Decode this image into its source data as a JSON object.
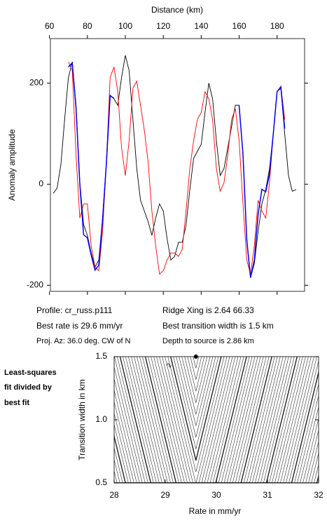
{
  "chart_data": [
    {
      "type": "line",
      "title": "Distance (km)",
      "y_label": "Anomaly amplitude",
      "xlim": [
        60.5,
        194.5
      ],
      "ylim": [
        -212,
        288
      ],
      "xticks": [
        60,
        80,
        100,
        120,
        140,
        160,
        180
      ],
      "yticks": [
        -200,
        0,
        200
      ],
      "x": [
        62,
        64,
        66,
        68,
        70,
        72,
        74,
        76,
        78,
        80,
        82,
        84,
        86,
        88,
        90,
        92,
        94,
        96,
        98,
        100,
        102,
        104,
        106,
        108,
        110,
        112,
        114,
        116,
        118,
        120,
        122,
        124,
        126,
        128,
        130,
        132,
        134,
        136,
        138,
        140,
        142,
        144,
        146,
        148,
        150,
        152,
        154,
        156,
        158,
        160,
        162,
        164,
        166,
        168,
        170,
        172,
        174,
        176,
        178,
        180,
        182,
        184,
        186,
        188,
        190
      ],
      "series": [
        {
          "color": "#000000",
          "values": [
            -18,
            -8,
            38,
            128,
            211,
            242,
            156,
            3,
            -80,
            -101,
            -136,
            -164,
            -150,
            -67,
            44,
            176,
            169,
            156,
            211,
            255,
            225,
            128,
            31,
            -32,
            -53,
            -74,
            -101,
            -67,
            -39,
            -53,
            -108,
            -150,
            -143,
            -115,
            -115,
            -81,
            -11,
            51,
            65,
            79,
            142,
            200,
            169,
            86,
            17,
            31,
            72,
            114,
            156,
            156,
            58,
            -108,
            -185,
            -157,
            -94,
            -39,
            -11,
            31,
            100,
            183,
            190,
            100,
            17,
            -14,
            -11
          ]
        },
        {
          "color": "#ff0000",
          "values": [
            null,
            null,
            null,
            null,
            242,
            225,
            58,
            -67,
            -39,
            -39,
            -122,
            -164,
            -171,
            -94,
            44,
            211,
            232,
            183,
            72,
            17,
            86,
            190,
            204,
            156,
            107,
            44,
            -53,
            -122,
            -178,
            -171,
            -150,
            -136,
            -136,
            -143,
            -129,
            -53,
            31,
            86,
            128,
            142,
            183,
            169,
            128,
            31,
            -14,
            3,
            58,
            128,
            149,
            86,
            -39,
            -150,
            -178,
            -122,
            -32,
            -53,
            -67,
            3,
            100,
            183,
            194,
            128,
            null,
            null,
            null
          ]
        },
        {
          "color": "#0000ff",
          "values": [
            null,
            null,
            null,
            null,
            232,
            240,
            150,
            0,
            -100,
            -106,
            -140,
            -170,
            -160,
            -70,
            40,
            175,
            170,
            null,
            null,
            null,
            null,
            null,
            null,
            null,
            null,
            null,
            null,
            null,
            null,
            null,
            null,
            null,
            null,
            null,
            null,
            null,
            null,
            null,
            null,
            null,
            null,
            null,
            null,
            null,
            null,
            null,
            null,
            null,
            null,
            155,
            60,
            -110,
            -185,
            -150,
            -60,
            -10,
            -15,
            20,
            100,
            183,
            192,
            110,
            null,
            null,
            null
          ]
        }
      ]
    },
    {
      "type": "contour",
      "x_label": "Rate in mm/yr",
      "y_label": "Transition width in km",
      "xlim": [
        28,
        32
      ],
      "ylim": [
        0.5,
        1.5
      ],
      "xticks": [
        28,
        29,
        30,
        31,
        32
      ],
      "yticks": [
        {
          "value": 0.5,
          "label": "0.5"
        },
        {
          "value": 1.0,
          "label": "1.0"
        },
        {
          "value": 1.5,
          "label": "1.5"
        }
      ],
      "best_fit": {
        "x": 29.6,
        "y": 1.5
      },
      "contour_label": "2"
    }
  ],
  "profile_info": [
    "Profile: cr_russ.p111",
    "Best rate is 29.6 mm/yr",
    "Proj. Az: 36.0 deg. CW of N",
    "Ridge Xing is 2.64 66.33",
    "Best transition width is 1.5 km",
    "Depth to source is   2.86 km"
  ],
  "side_note": [
    "Least-squares",
    "fit divided by",
    "best fit"
  ]
}
